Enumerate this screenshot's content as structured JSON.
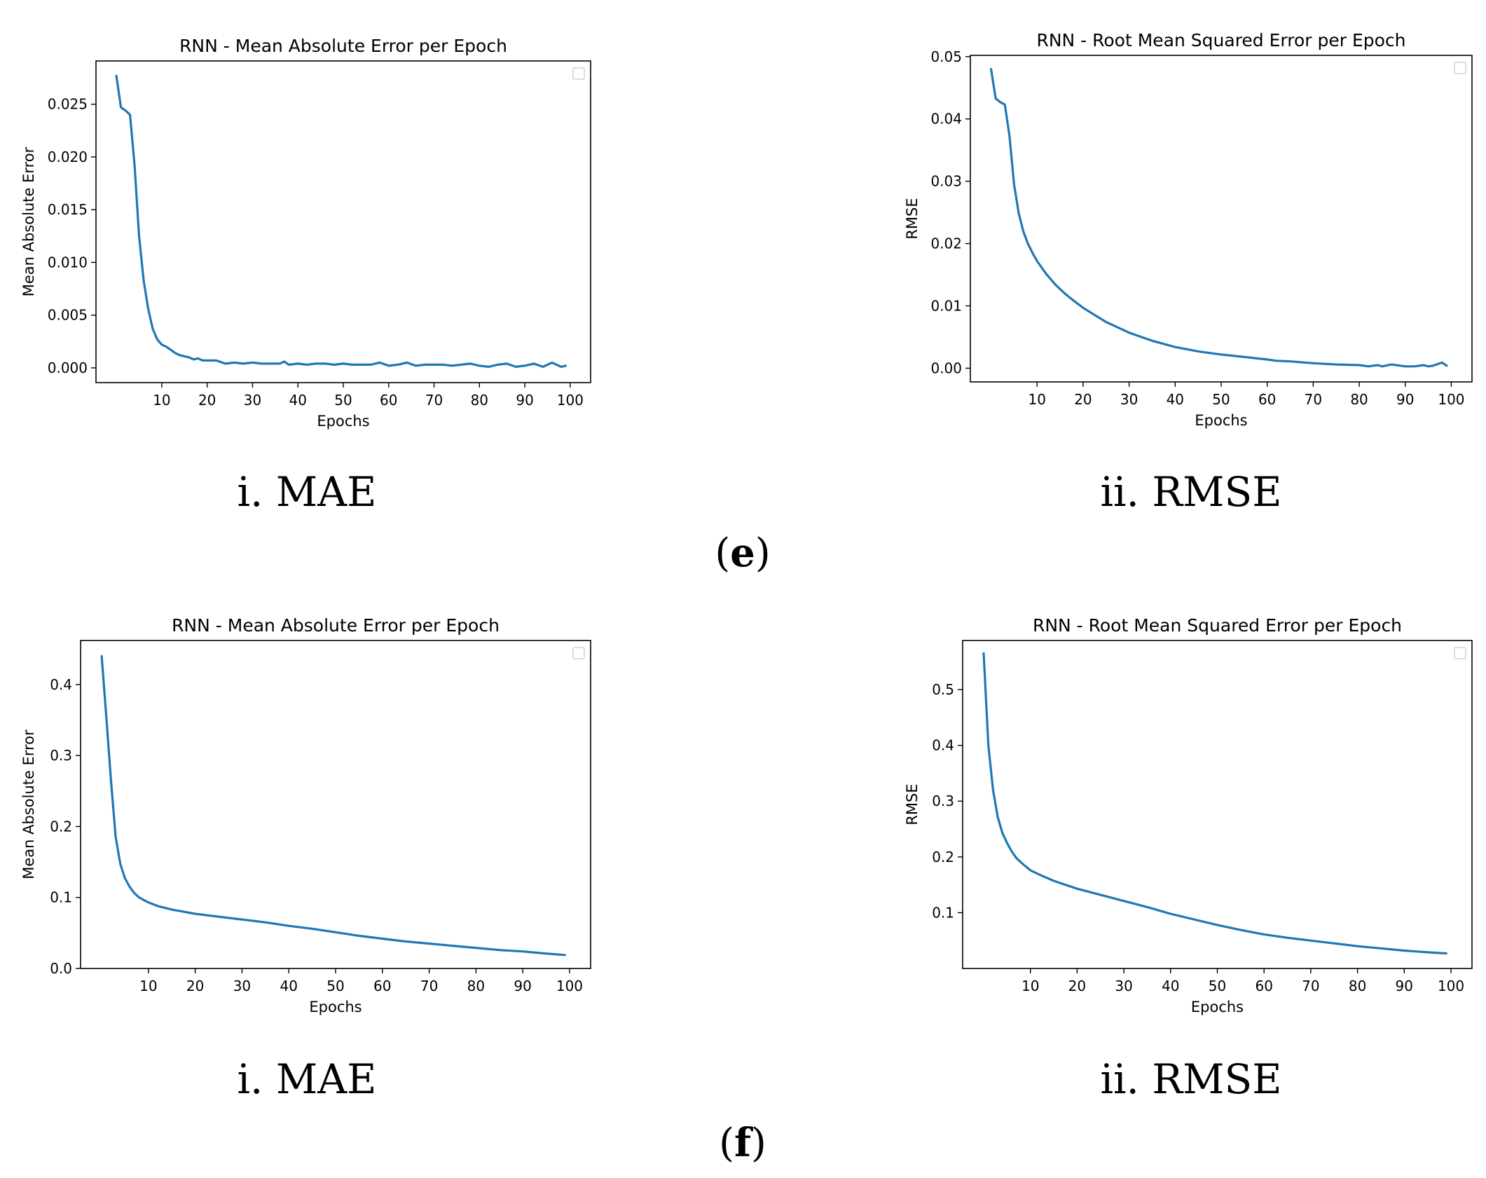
{
  "colors": {
    "line": "#1f77b4",
    "axis": "#000000",
    "background": "#ffffff"
  },
  "panels": [
    {
      "sub_caption": "i. MAE"
    },
    {
      "sub_caption": "ii. RMSE"
    },
    {
      "sub_caption": "i. MAE"
    },
    {
      "sub_caption": "ii. RMSE"
    }
  ],
  "group_labels": [
    {
      "open": "(",
      "letter": "e",
      "close": ")"
    },
    {
      "open": "(",
      "letter": "f",
      "close": ")"
    }
  ],
  "chart_data": [
    {
      "type": "line",
      "title": "RNN -  Mean Absolute Error per Epoch",
      "xlabel": "Epochs",
      "ylabel": "Mean Absolute Error",
      "xlim": [
        -4.5,
        104.5
      ],
      "ylim": [
        -0.0014,
        0.0291
      ],
      "xticks": [
        10,
        20,
        30,
        40,
        50,
        60,
        70,
        80,
        90,
        100
      ],
      "yticks": [
        0.0,
        0.005,
        0.01,
        0.015,
        0.02,
        0.025
      ],
      "ytick_labels": [
        "0.000",
        "0.005",
        "0.010",
        "0.015",
        "0.020",
        "0.025"
      ],
      "legend": "top-right (empty)",
      "grid": false,
      "series": [
        {
          "name": "",
          "x": [
            0,
            1,
            2,
            3,
            4,
            5,
            6,
            7,
            8,
            9,
            10,
            11,
            12,
            13,
            14,
            15,
            16,
            17,
            18,
            19,
            20,
            22,
            24,
            26,
            28,
            30,
            32,
            34,
            36,
            37,
            38,
            40,
            42,
            44,
            46,
            48,
            50,
            52,
            54,
            56,
            58,
            60,
            62,
            64,
            66,
            68,
            70,
            72,
            74,
            76,
            78,
            80,
            82,
            84,
            86,
            88,
            90,
            92,
            94,
            96,
            98,
            99
          ],
          "y": [
            0.0277,
            0.0247,
            0.0244,
            0.024,
            0.0192,
            0.0125,
            0.0083,
            0.0056,
            0.0037,
            0.0027,
            0.0022,
            0.002,
            0.0017,
            0.0014,
            0.0012,
            0.0011,
            0.001,
            0.0008,
            0.0009,
            0.0007,
            0.0007,
            0.0007,
            0.0004,
            0.0005,
            0.0004,
            0.0005,
            0.0004,
            0.0004,
            0.0004,
            0.0006,
            0.0003,
            0.0004,
            0.0003,
            0.0004,
            0.0004,
            0.0003,
            0.0004,
            0.0003,
            0.0003,
            0.0003,
            0.0005,
            0.0002,
            0.0003,
            0.0005,
            0.0002,
            0.0003,
            0.0003,
            0.0003,
            0.0002,
            0.0003,
            0.0004,
            0.0002,
            0.0001,
            0.0003,
            0.0004,
            0.0001,
            0.0002,
            0.0004,
            0.0001,
            0.0005,
            0.0001,
            0.0002
          ]
        }
      ]
    },
    {
      "type": "line",
      "title": "RNN - Root Mean Squared Error per Epoch",
      "xlabel": "Epochs",
      "ylabel": "RMSE",
      "xlim": [
        -4.5,
        104.5
      ],
      "ylim": [
        -0.0022,
        0.0502
      ],
      "xticks": [
        10,
        20,
        30,
        40,
        50,
        60,
        70,
        80,
        90,
        100
      ],
      "yticks": [
        0.0,
        0.01,
        0.02,
        0.03,
        0.04,
        0.05
      ],
      "ytick_labels": [
        "0.00",
        "0.01",
        "0.02",
        "0.03",
        "0.04",
        "0.05"
      ],
      "legend": "top-right (empty)",
      "grid": false,
      "series": [
        {
          "name": "",
          "x": [
            0,
            1,
            2,
            3,
            4,
            5,
            6,
            7,
            8,
            9,
            10,
            12,
            14,
            16,
            18,
            20,
            25,
            30,
            35,
            40,
            45,
            50,
            55,
            60,
            62,
            65,
            70,
            75,
            80,
            82,
            84,
            85,
            87,
            90,
            92,
            94,
            95,
            96,
            98,
            99
          ],
          "y": [
            0.048,
            0.0433,
            0.0427,
            0.0423,
            0.0373,
            0.0295,
            0.0249,
            0.022,
            0.02,
            0.0185,
            0.0172,
            0.0151,
            0.0134,
            0.012,
            0.0108,
            0.0097,
            0.0074,
            0.0057,
            0.0044,
            0.0034,
            0.0027,
            0.0022,
            0.0018,
            0.0014,
            0.0012,
            0.0011,
            0.0008,
            0.0006,
            0.0005,
            0.0003,
            0.0005,
            0.0003,
            0.0006,
            0.0003,
            0.0003,
            0.0005,
            0.0003,
            0.0004,
            0.0009,
            0.0004
          ]
        }
      ]
    },
    {
      "type": "line",
      "title": "RNN -  Mean Absolute Error per Epoch",
      "xlabel": "Epochs",
      "ylabel": "Mean Absolute Error",
      "xlim": [
        -4.5,
        104.5
      ],
      "ylim": [
        0.0,
        0.462
      ],
      "xticks": [
        10,
        20,
        30,
        40,
        50,
        60,
        70,
        80,
        90,
        100
      ],
      "yticks": [
        0.0,
        0.1,
        0.2,
        0.3,
        0.4
      ],
      "ytick_labels": [
        "0.0",
        "0.1",
        "0.2",
        "0.3",
        "0.4"
      ],
      "legend": "top-right (empty)",
      "grid": false,
      "series": [
        {
          "name": "",
          "x": [
            0,
            1,
            2,
            3,
            4,
            5,
            6,
            7,
            8,
            10,
            12,
            15,
            20,
            25,
            30,
            35,
            40,
            45,
            50,
            55,
            60,
            65,
            70,
            75,
            80,
            85,
            90,
            95,
            99
          ],
          "y": [
            0.44,
            0.355,
            0.265,
            0.185,
            0.147,
            0.127,
            0.115,
            0.106,
            0.1,
            0.093,
            0.088,
            0.083,
            0.077,
            0.073,
            0.069,
            0.065,
            0.06,
            0.056,
            0.051,
            0.046,
            0.042,
            0.038,
            0.035,
            0.032,
            0.029,
            0.026,
            0.024,
            0.021,
            0.019
          ]
        }
      ]
    },
    {
      "type": "line",
      "title": "RNN - Root Mean Squared Error per Epoch",
      "xlabel": "Epochs",
      "ylabel": "RMSE",
      "xlim": [
        -4.5,
        104.5
      ],
      "ylim": [
        0.0,
        0.588
      ],
      "xticks": [
        10,
        20,
        30,
        40,
        50,
        60,
        70,
        80,
        90,
        100
      ],
      "yticks": [
        0.1,
        0.2,
        0.3,
        0.4,
        0.5
      ],
      "ytick_labels": [
        "0.1",
        "0.2",
        "0.3",
        "0.4",
        "0.5"
      ],
      "legend": "top-right (empty)",
      "grid": false,
      "series": [
        {
          "name": "",
          "x": [
            0,
            1,
            2,
            3,
            4,
            5,
            6,
            7,
            8,
            10,
            12,
            15,
            20,
            25,
            30,
            35,
            40,
            45,
            50,
            55,
            60,
            65,
            70,
            75,
            80,
            85,
            90,
            95,
            99
          ],
          "y": [
            0.565,
            0.4,
            0.32,
            0.272,
            0.243,
            0.225,
            0.21,
            0.198,
            0.19,
            0.176,
            0.168,
            0.157,
            0.143,
            0.132,
            0.121,
            0.11,
            0.098,
            0.088,
            0.078,
            0.069,
            0.061,
            0.055,
            0.05,
            0.045,
            0.04,
            0.036,
            0.032,
            0.029,
            0.027
          ]
        }
      ]
    }
  ]
}
